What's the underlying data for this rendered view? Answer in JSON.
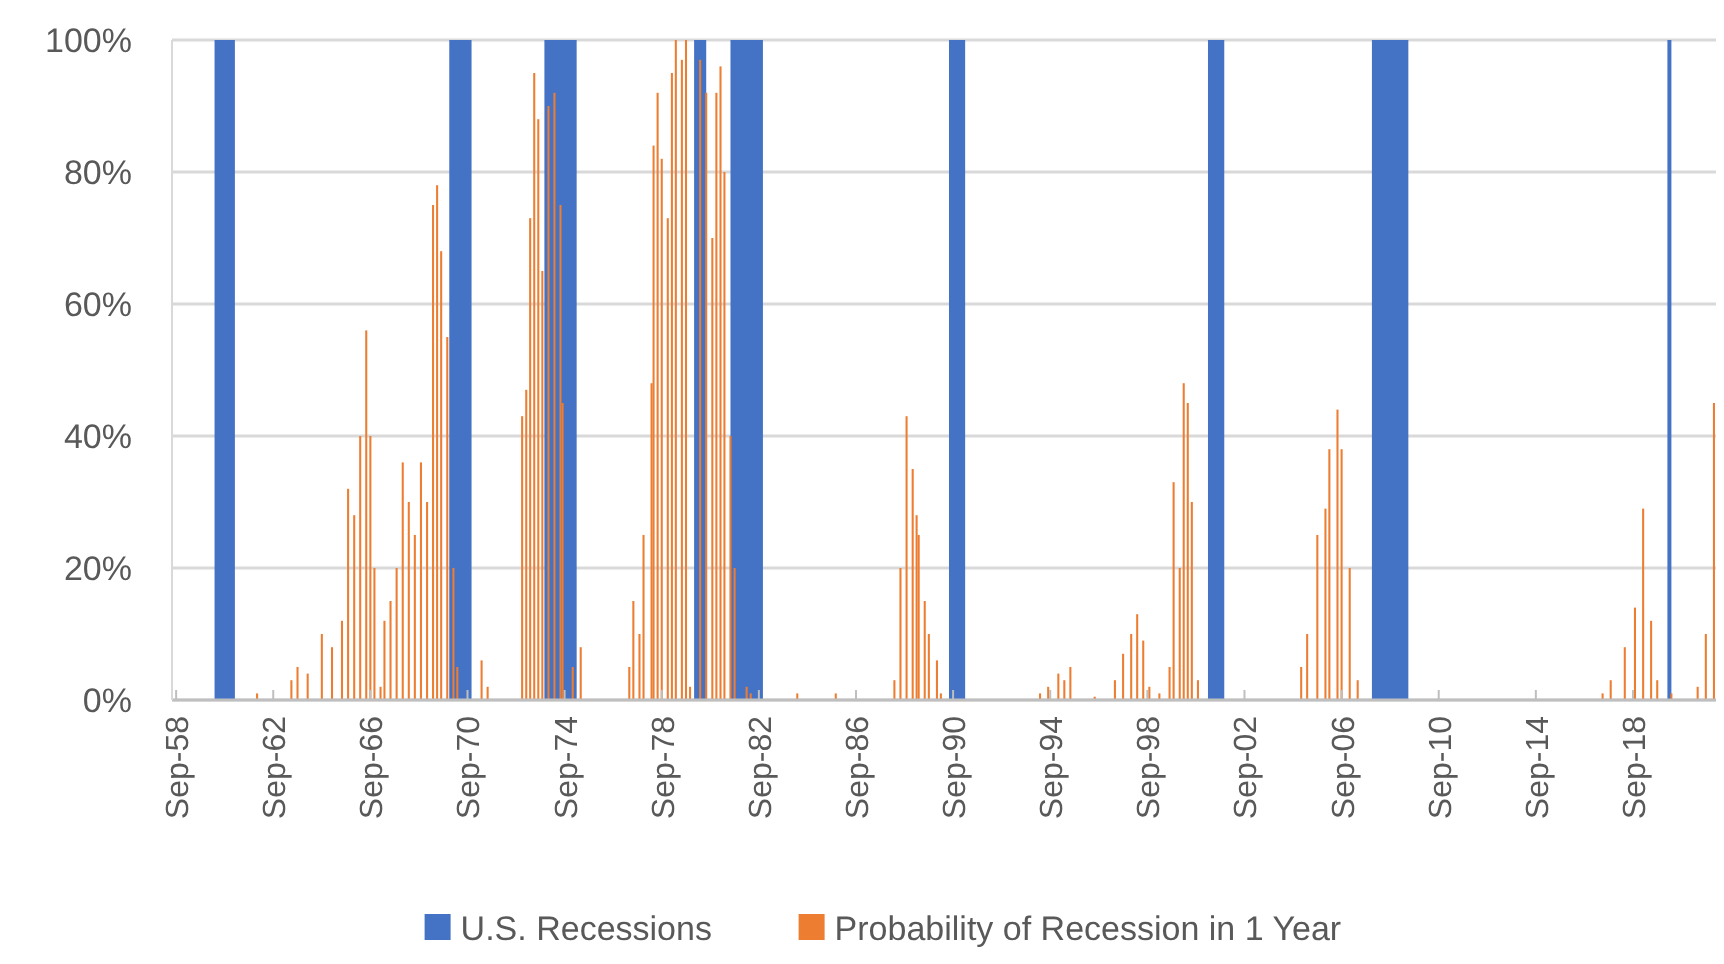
{
  "chart_data": {
    "type": "bar",
    "x": [
      "1962-01",
      "1963-06",
      "1963-09",
      "1964-02",
      "1964-09",
      "1965-02",
      "1965-07",
      "1965-10",
      "1966-01",
      "1966-04",
      "1966-07",
      "1966-09",
      "1966-11",
      "1967-02",
      "1967-04",
      "1967-07",
      "1967-10",
      "1968-01",
      "1968-04",
      "1968-07",
      "1968-10",
      "1969-01",
      "1969-04",
      "1969-06",
      "1969-08",
      "1969-11",
      "1970-02",
      "1970-04",
      "1971-04",
      "1971-07",
      "1972-12",
      "1973-02",
      "1973-04",
      "1973-06",
      "1973-08",
      "1973-10",
      "1974-01",
      "1974-04",
      "1974-07",
      "1974-08",
      "1975-01",
      "1975-05",
      "1977-05",
      "1977-07",
      "1977-10",
      "1977-12",
      "1978-04",
      "1978-05",
      "1978-07",
      "1978-09",
      "1978-12",
      "1979-02",
      "1979-04",
      "1979-07",
      "1979-09",
      "1979-11",
      "1980-04",
      "1980-07",
      "1980-10",
      "1980-12",
      "1981-02",
      "1981-04",
      "1981-07",
      "1981-09",
      "1982-03",
      "1982-05",
      "1984-04",
      "1985-11",
      "1988-04",
      "1988-07",
      "1988-10",
      "1989-01",
      "1989-03",
      "1989-04",
      "1989-07",
      "1989-09",
      "1990-01",
      "1990-03",
      "1994-04",
      "1994-08",
      "1995-01",
      "1995-04",
      "1995-07",
      "1996-07",
      "1997-05",
      "1997-09",
      "1998-01",
      "1998-04",
      "1998-07",
      "1998-10",
      "1999-03",
      "1999-08",
      "1999-10",
      "2000-01",
      "2000-03",
      "2000-05",
      "2000-07",
      "2000-10",
      "2005-01",
      "2005-04",
      "2005-09",
      "2006-01",
      "2006-03",
      "2006-07",
      "2006-09",
      "2007-01",
      "2007-05",
      "2017-06",
      "2017-10",
      "2018-05",
      "2018-10",
      "2019-02",
      "2019-06",
      "2019-09",
      "2020-04",
      "2021-05",
      "2021-09",
      "2022-01"
    ],
    "series": [
      {
        "name": "Probability of Recession in 1 Year",
        "color": "#ed7d31",
        "values": [
          1,
          3,
          5,
          4,
          10,
          8,
          12,
          32,
          28,
          40,
          56,
          40,
          20,
          2,
          12,
          15,
          20,
          36,
          30,
          25,
          36,
          30,
          75,
          78,
          68,
          55,
          20,
          5,
          6,
          2,
          43,
          47,
          73,
          95,
          88,
          65,
          90,
          92,
          75,
          45,
          5,
          8,
          5,
          15,
          10,
          25,
          48,
          84,
          92,
          82,
          73,
          95,
          100,
          97,
          100,
          2,
          97,
          92,
          70,
          92,
          96,
          80,
          40,
          20,
          2,
          1,
          1,
          1,
          3,
          20,
          43,
          35,
          28,
          25,
          15,
          10,
          6,
          1,
          1,
          2,
          4,
          3,
          5,
          0.5,
          3,
          7,
          10,
          13,
          9,
          2,
          1,
          5,
          33,
          20,
          48,
          45,
          30,
          3,
          5,
          10,
          25,
          29,
          38,
          44,
          38,
          20,
          3,
          1,
          3,
          8,
          14,
          29,
          12,
          3,
          1,
          2,
          10,
          45
        ]
      }
    ],
    "bands": [
      {
        "axis": "x",
        "from": "1960-04",
        "to": "1961-02",
        "label": "U.S. Recessions",
        "color": "#4472c4"
      },
      {
        "axis": "x",
        "from": "1969-12",
        "to": "1970-11",
        "color": "#4472c4"
      },
      {
        "axis": "x",
        "from": "1973-11",
        "to": "1975-03",
        "color": "#4472c4"
      },
      {
        "axis": "x",
        "from": "1980-01",
        "to": "1980-07",
        "color": "#4472c4"
      },
      {
        "axis": "x",
        "from": "1981-07",
        "to": "1982-11",
        "color": "#4472c4"
      },
      {
        "axis": "x",
        "from": "1990-07",
        "to": "1991-03",
        "color": "#4472c4"
      },
      {
        "axis": "x",
        "from": "2001-03",
        "to": "2001-11",
        "color": "#4472c4"
      },
      {
        "axis": "x",
        "from": "2007-12",
        "to": "2009-06",
        "color": "#4472c4"
      },
      {
        "axis": "x",
        "from": "2020-02",
        "to": "2020-04",
        "color": "#4472c4"
      }
    ],
    "xlim": [
      "1958-07",
      "2022-02"
    ],
    "xticks": [
      {
        "value": "1958-09",
        "label": "Sep-58"
      },
      {
        "value": "1962-09",
        "label": "Sep-62"
      },
      {
        "value": "1966-09",
        "label": "Sep-66"
      },
      {
        "value": "1970-09",
        "label": "Sep-70"
      },
      {
        "value": "1974-09",
        "label": "Sep-74"
      },
      {
        "value": "1978-09",
        "label": "Sep-78"
      },
      {
        "value": "1982-09",
        "label": "Sep-82"
      },
      {
        "value": "1986-09",
        "label": "Sep-86"
      },
      {
        "value": "1990-09",
        "label": "Sep-90"
      },
      {
        "value": "1994-09",
        "label": "Sep-94"
      },
      {
        "value": "1998-09",
        "label": "Sep-98"
      },
      {
        "value": "2002-09",
        "label": "Sep-02"
      },
      {
        "value": "2006-09",
        "label": "Sep-06"
      },
      {
        "value": "2010-09",
        "label": "Sep-10"
      },
      {
        "value": "2014-09",
        "label": "Sep-14"
      },
      {
        "value": "2018-09",
        "label": "Sep-18"
      }
    ],
    "ylim": [
      0,
      100
    ],
    "yticks": [
      {
        "value": 0,
        "label": "0%"
      },
      {
        "value": 20,
        "label": "20%"
      },
      {
        "value": 40,
        "label": "40%"
      },
      {
        "value": 60,
        "label": "60%"
      },
      {
        "value": 80,
        "label": "80%"
      },
      {
        "value": 100,
        "label": "100%"
      }
    ],
    "grid": "y",
    "legend": "bottom"
  }
}
